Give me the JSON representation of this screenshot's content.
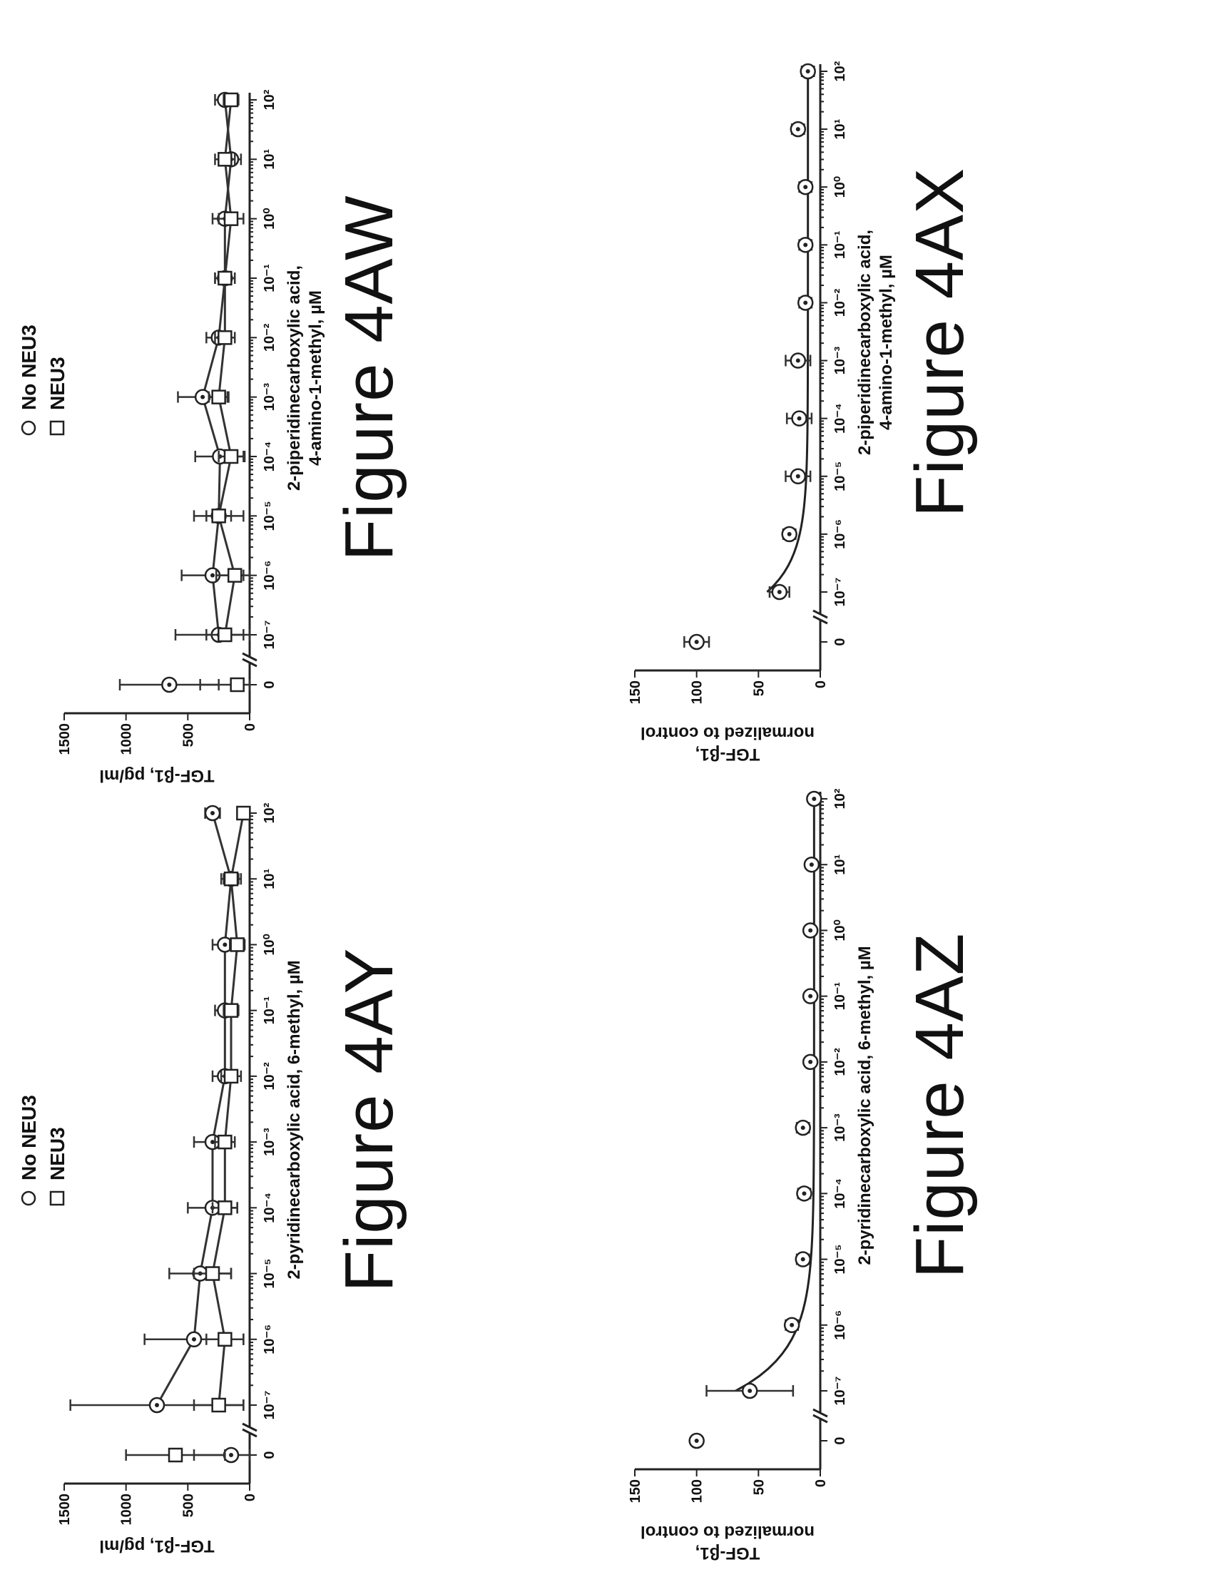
{
  "chart_data": [
    {
      "id": "4AW",
      "type": "line",
      "caption": "Figure 4AW",
      "title": "",
      "xlabel_lines": [
        "2-piperidinecarboxylic acid,",
        "4-amino-1-methyl, µM"
      ],
      "ylabel": "TGF-β1, pg/ml",
      "yticks": [
        "0",
        "500",
        "1000",
        "1500"
      ],
      "ylim": [
        0,
        1500
      ],
      "xticks": [
        "0",
        "10⁻⁷",
        "10⁻⁶",
        "10⁻⁵",
        "10⁻⁴",
        "10⁻³",
        "10⁻²",
        "10⁻¹",
        "10⁰",
        "10¹",
        "10²"
      ],
      "legend": [
        "No NEU3",
        "NEU3"
      ],
      "legend_position": "top-right",
      "series": [
        {
          "name": "No NEU3",
          "marker": "circle",
          "values": [
            650,
            250,
            300,
            250,
            240,
            380,
            250,
            200,
            200,
            150,
            200
          ],
          "errors": [
            400,
            350,
            250,
            200,
            200,
            200,
            100,
            80,
            100,
            80,
            80
          ]
        },
        {
          "name": "NEU3",
          "marker": "square",
          "values": [
            100,
            200,
            120,
            250,
            150,
            250,
            200,
            200,
            150,
            200,
            150
          ],
          "errors": [
            300,
            150,
            150,
            100,
            100,
            80,
            80,
            80,
            100,
            80,
            60
          ]
        }
      ]
    },
    {
      "id": "4AX",
      "type": "scatter",
      "caption": "Figure 4AX",
      "title": "",
      "xlabel_lines": [
        "2-piperidinecarboxylic acid,",
        "4-amino-1-methyl, µM"
      ],
      "ylabel_lines": [
        "TGF-β1,",
        "normalized to control"
      ],
      "yticks": [
        "0",
        "50",
        "100",
        "150"
      ],
      "ylim": [
        0,
        150
      ],
      "xticks": [
        "0",
        "10⁻⁷",
        "10⁻⁶",
        "10⁻⁵",
        "10⁻⁴",
        "10⁻³",
        "10⁻²",
        "10⁻¹",
        "10⁰",
        "10¹",
        "10²"
      ],
      "fit": true,
      "series": [
        {
          "name": "",
          "marker": "circle",
          "values": [
            100,
            33,
            25,
            18,
            17,
            18,
            12,
            12,
            12,
            18,
            10
          ],
          "errors": [
            10,
            8,
            5,
            10,
            10,
            10,
            5,
            5,
            5,
            5,
            5
          ]
        }
      ]
    },
    {
      "id": "4AY",
      "type": "line",
      "caption": "Figure 4AY",
      "title": "",
      "xlabel_lines": [
        "2-pyridinecarboxylic acid, 6-methyl, µM"
      ],
      "ylabel": "TGF-β1, pg/ml",
      "yticks": [
        "0",
        "500",
        "1000",
        "1500"
      ],
      "ylim": [
        0,
        1500
      ],
      "xticks": [
        "0",
        "10⁻⁷",
        "10⁻⁶",
        "10⁻⁵",
        "10⁻⁴",
        "10⁻³",
        "10⁻²",
        "10⁻¹",
        "10⁰",
        "10¹",
        "10²"
      ],
      "legend": [
        "No NEU3",
        "NEU3"
      ],
      "legend_position": "top-right",
      "series": [
        {
          "name": "No NEU3",
          "marker": "circle",
          "values": [
            150,
            750,
            450,
            400,
            300,
            300,
            200,
            200,
            200,
            150,
            300
          ],
          "errors": [
            300,
            700,
            400,
            250,
            200,
            150,
            100,
            80,
            100,
            80,
            60
          ]
        },
        {
          "name": "NEU3",
          "marker": "square",
          "values": [
            600,
            250,
            200,
            300,
            200,
            200,
            150,
            150,
            100,
            150,
            50
          ],
          "errors": [
            400,
            200,
            150,
            150,
            100,
            80,
            80,
            60,
            60,
            60,
            40
          ]
        }
      ]
    },
    {
      "id": "4AZ",
      "type": "scatter",
      "caption": "Figure 4AZ",
      "title": "",
      "xlabel_lines": [
        "2-pyridinecarboxylic acid, 6-methyl, µM"
      ],
      "ylabel_lines": [
        "TGF-β1,",
        "normalized to control"
      ],
      "yticks": [
        "0",
        "50",
        "100",
        "150"
      ],
      "ylim": [
        0,
        150
      ],
      "xticks": [
        "0",
        "10⁻⁷",
        "10⁻⁶",
        "10⁻⁵",
        "10⁻⁴",
        "10⁻³",
        "10⁻²",
        "10⁻¹",
        "10⁰",
        "10¹",
        "10²"
      ],
      "fit": true,
      "series": [
        {
          "name": "",
          "marker": "circle",
          "values": [
            100,
            57,
            23,
            14,
            13,
            14,
            8,
            8,
            8,
            7,
            5
          ],
          "errors": [
            0,
            35,
            5,
            5,
            5,
            5,
            3,
            3,
            3,
            3,
            3
          ]
        }
      ]
    }
  ]
}
